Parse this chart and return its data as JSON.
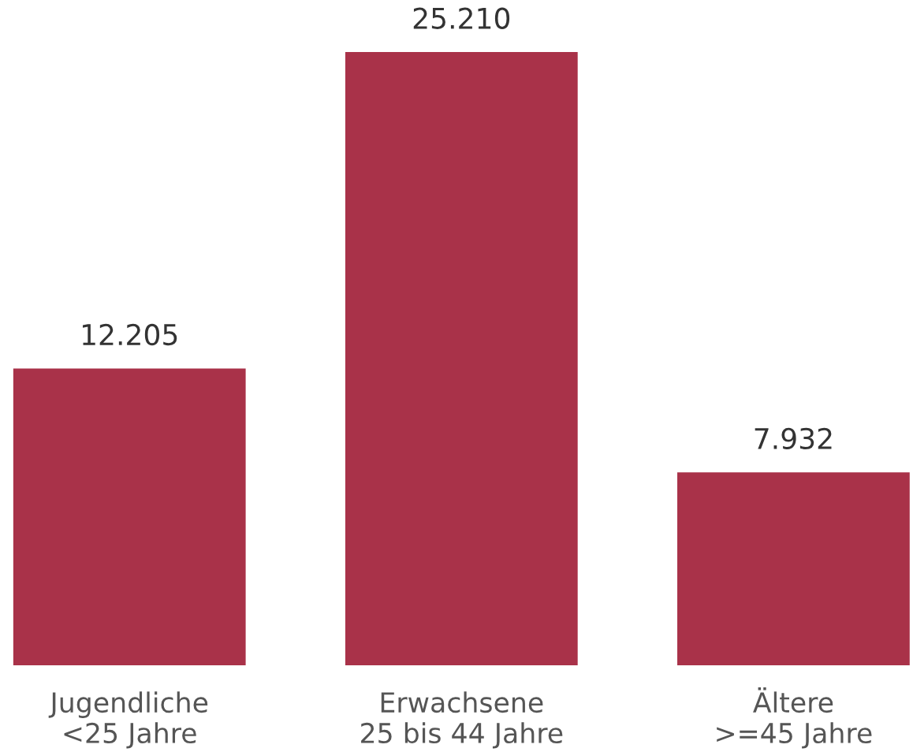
{
  "chart_data": {
    "type": "bar",
    "categories": [
      "Jugendliche\n<25 Jahre",
      "Erwachsene\n25 bis 44 Jahre",
      "Ältere\n>=45 Jahre"
    ],
    "values": [
      12205,
      25210,
      7932
    ],
    "value_labels": [
      "12.205",
      "25.210",
      "7.932"
    ],
    "color": "#a93249",
    "grid": false,
    "legend": false
  }
}
